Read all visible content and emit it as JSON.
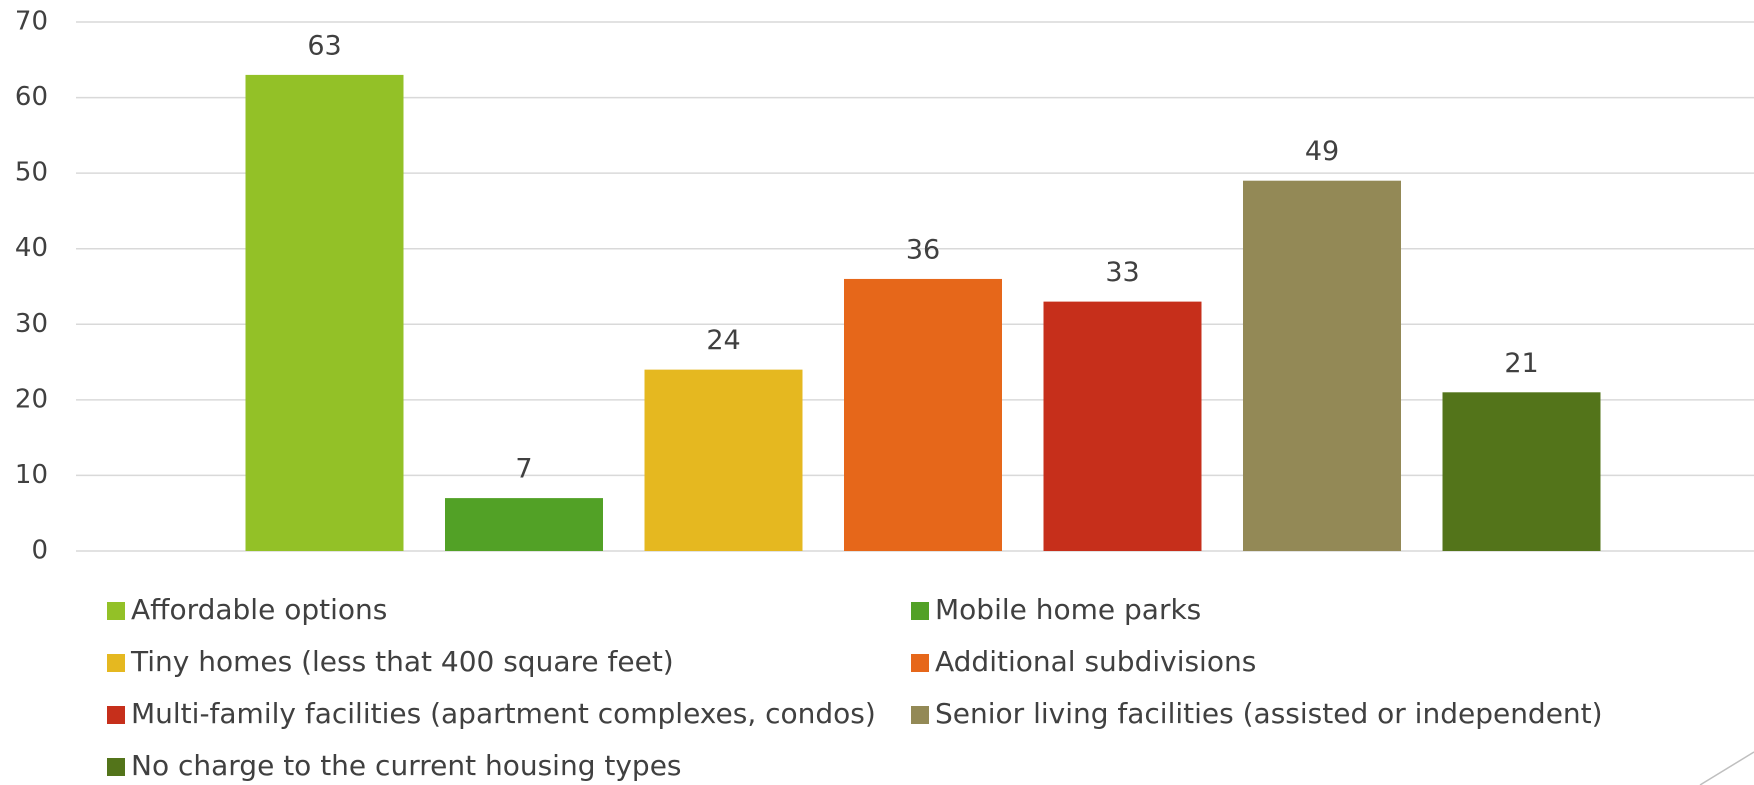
{
  "chart_data": {
    "type": "bar",
    "categories": [
      null
    ],
    "series": [
      {
        "name": "Affordable options",
        "color": "#93c127",
        "values": [
          63
        ]
      },
      {
        "name": "Mobile home parks",
        "color": "#52a126",
        "values": [
          7
        ]
      },
      {
        "name": "Tiny homes (less that 400 square feet)",
        "color": "#e5b820",
        "values": [
          24
        ]
      },
      {
        "name": "Additional subdivisions",
        "color": "#e6671a",
        "values": [
          36
        ]
      },
      {
        "name": "Multi-family facilities (apartment complexes, condos)",
        "color": "#c62f1b",
        "values": [
          33
        ]
      },
      {
        "name": "Senior living facilities (assisted or independent)",
        "color": "#938956",
        "values": [
          49
        ]
      },
      {
        "name": "No charge to the current housing types",
        "color": "#53741a",
        "values": [
          21
        ]
      }
    ],
    "ylim": [
      0,
      70
    ],
    "yticks": [
      0,
      10,
      20,
      30,
      40,
      50,
      60,
      70
    ],
    "grid": true,
    "legend": "bottom"
  }
}
